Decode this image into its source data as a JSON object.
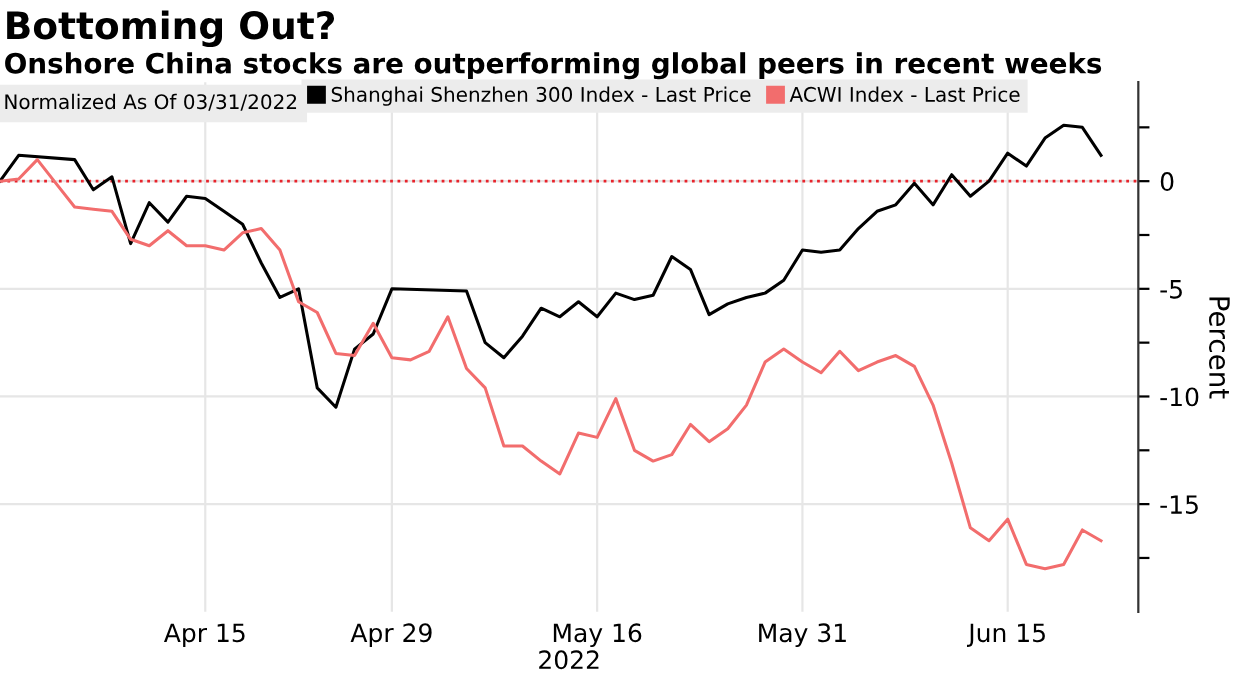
{
  "chart_data": {
    "type": "line",
    "title": "Bottoming Out?",
    "subtitle": "Onshore China stocks are outperforming global peers in recent weeks",
    "legend_title": "Normalized As Of 03/31/2022",
    "legend": "top",
    "xlabel": "2022",
    "ylabel": "Percent",
    "categories": [
      null,
      null,
      null,
      null,
      null,
      null,
      null,
      null,
      null,
      null,
      null,
      "Apr 15",
      null,
      null,
      null,
      null,
      null,
      null,
      null,
      null,
      null,
      "Apr 29",
      null,
      null,
      null,
      null,
      null,
      null,
      null,
      null,
      null,
      null,
      "May 16",
      null,
      null,
      null,
      null,
      null,
      null,
      null,
      null,
      null,
      null,
      "May 31",
      null,
      null,
      null,
      null,
      null,
      null,
      null,
      null,
      null,
      null,
      "Jun 15",
      null,
      null,
      null,
      null,
      null
    ],
    "series": [
      {
        "name": "Shanghai Shenzhen 300 Index - Last Price",
        "color": "#000000",
        "values": [
          0,
          1.2,
          null,
          null,
          1.0,
          -0.4,
          0.2,
          -2.9,
          -1.0,
          -1.9,
          -0.7,
          -0.8,
          -1.4,
          -2.0,
          -3.8,
          -5.4,
          -5.0,
          -9.6,
          -10.5,
          -7.8,
          -7.1,
          -5.0,
          null,
          null,
          null,
          -5.1,
          -7.5,
          -8.2,
          -7.2,
          -5.9,
          -6.3,
          -5.6,
          -6.3,
          -5.2,
          -5.5,
          -5.3,
          -3.5,
          -4.1,
          -6.2,
          -5.7,
          -5.4,
          -5.2,
          -4.6,
          -3.2,
          -3.3,
          -3.2,
          -2.2,
          -1.4,
          -1.1,
          -0.1,
          -1.1,
          0.3,
          -0.7,
          0,
          1.3,
          0.7,
          2.0,
          2.6,
          2.5,
          1.2
        ]
      },
      {
        "name": "ACWI Index - Last Price",
        "color": "#f26d6d",
        "values": [
          0,
          0.1,
          1.0,
          -0.1,
          -1.2,
          -1.3,
          -1.4,
          -2.7,
          -3.0,
          -2.3,
          -3.0,
          -3.0,
          -3.2,
          -2.4,
          -2.2,
          -3.2,
          -5.6,
          -6.1,
          -8.0,
          -8.1,
          -6.6,
          -8.2,
          -8.3,
          -7.9,
          -6.3,
          -8.7,
          -9.6,
          -12.3,
          -12.3,
          -13.0,
          -13.6,
          -11.7,
          -11.9,
          -10.1,
          -12.5,
          -13.0,
          -12.7,
          -11.3,
          -12.1,
          -11.5,
          -10.4,
          -8.4,
          -7.8,
          -8.4,
          -8.9,
          -7.9,
          -8.8,
          -8.4,
          -8.1,
          -8.6,
          -10.4,
          -13.1,
          -16.1,
          -16.7,
          -15.7,
          -17.8,
          -18.0,
          -17.8,
          -16.2,
          -16.7
        ]
      }
    ],
    "ylim": [
      -20,
      4.6
    ],
    "yticks": [
      {
        "value": 2.5,
        "label": null
      },
      0,
      {
        "value": -2.5,
        "label": null
      },
      -5,
      {
        "value": -7.5,
        "label": null
      },
      -10,
      {
        "value": -12.5,
        "label": null
      },
      -15,
      {
        "value": -17.5,
        "label": null
      }
    ],
    "ref_lines": [
      {
        "axis": "y",
        "value": 0,
        "color": "#e8232b",
        "line_style": "dotted"
      }
    ],
    "grid": true,
    "marker": "none",
    "line_style": "solid"
  }
}
